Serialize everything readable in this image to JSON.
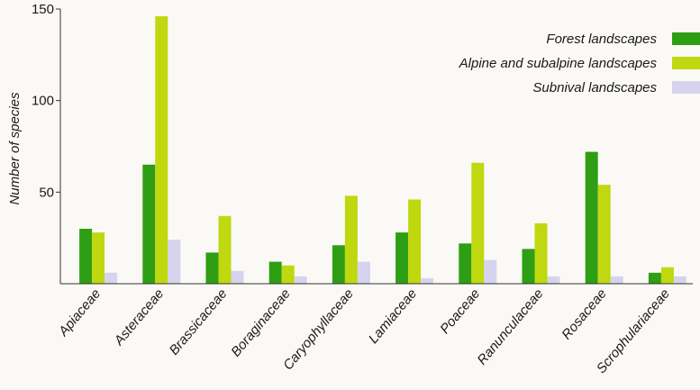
{
  "chart_data": {
    "type": "bar",
    "ylabel": "Number of species",
    "ylim": [
      0,
      150
    ],
    "yticks": [
      50,
      100,
      150
    ],
    "grid": false,
    "legend_position": "top-right",
    "categories": [
      "Apiaceae",
      "Asteraceae",
      "Brassicaceae",
      "Boraginaceae",
      "Caryophyllaceae",
      "Lamiaceae",
      "Poaceae",
      "Ranunculaceae",
      "Rosaceae",
      "Scrophulariaceae"
    ],
    "series": [
      {
        "name": "Forest landscapes",
        "color": "#2e9e14",
        "values": [
          30,
          65,
          17,
          12,
          21,
          28,
          22,
          19,
          72,
          6
        ]
      },
      {
        "name": "Alpine and subalpine landscapes",
        "color": "#bfd80f",
        "values": [
          28,
          146,
          37,
          10,
          48,
          46,
          66,
          33,
          54,
          9
        ]
      },
      {
        "name": "Subnival landscapes",
        "color": "#d6d3ee",
        "values": [
          6,
          24,
          7,
          4,
          12,
          3,
          13,
          4,
          4,
          4
        ]
      }
    ]
  }
}
